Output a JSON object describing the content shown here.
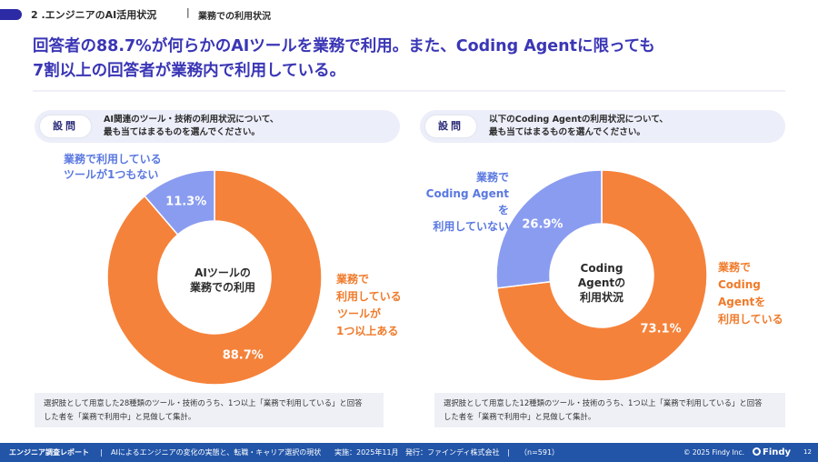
{
  "header": {
    "section": "2 .エンジニアのAI活用状況",
    "separator": "|",
    "subsection": "業務での利用状況"
  },
  "headline": {
    "line1": "回答者の88.7%が何らかのAIツールを業務で利用。また、Coding Agentに限っても",
    "line2": "7割以上の回答者が業務内で利用している。"
  },
  "left": {
    "question_label": "設問",
    "question_line1": "AI関連のツール・技術の利用状況について、",
    "question_line2": "最も当てはまるものを選んでください。",
    "blue_label": [
      "業務で利用している",
      "ツールが1つもない"
    ],
    "orange_label": [
      "業務で",
      "利用している",
      "ツールが",
      "1つ以上ある"
    ],
    "center": [
      "AIツールの",
      "業務での利用"
    ],
    "note_line1": "選択肢として用意した28種類のツール・技術のうち、1つ以上「業務で利用している」と回答",
    "note_line2": "した者を「業務で利用中」と見做して集計。"
  },
  "right": {
    "question_label": "設問",
    "question_line1": "以下のCoding Agentの利用状況について、",
    "question_line2": "最も当てはまるものを選んでください。",
    "blue_label": [
      "業務で",
      "Coding Agentを",
      "利用していない"
    ],
    "orange_label": [
      "業務で",
      "Coding",
      "Agentを",
      "利用している"
    ],
    "center": [
      "Coding",
      "Agentの",
      "利用状況"
    ],
    "note_line1": "選択肢として用意した12種類のツール・技術のうち、1つ以上「業務で利用している」と回答",
    "note_line2": "した者を「業務で利用中」と見做して集計。"
  },
  "colors": {
    "orange": "#f5823a",
    "blue": "#8a9cf0",
    "title": "#3a36b5",
    "footer": "#2255a8"
  },
  "chart_data": [
    {
      "type": "pie",
      "categories": [
        "業務で利用しているツールが1つ以上ある",
        "業務で利用しているツールが1つもない"
      ],
      "values": [
        88.7,
        11.3
      ],
      "labels": [
        "88.7%",
        "11.3%"
      ],
      "colors": [
        "#f5823a",
        "#8a9cf0"
      ]
    },
    {
      "type": "pie",
      "categories": [
        "業務でCoding Agentを利用している",
        "業務でCoding Agentを利用していない"
      ],
      "values": [
        73.1,
        26.9
      ],
      "labels": [
        "73.1%",
        "26.9%"
      ],
      "colors": [
        "#f5823a",
        "#8a9cf0"
      ]
    }
  ],
  "footer": {
    "report": "エンジニア調査レポート",
    "sep1": "|",
    "desc": "AIによるエンジニアの変化の実態と、転職・キャリア選択の現状",
    "date": "実施：2025年11月",
    "publisher": "発行：ファインディ株式会社",
    "sep2": "|",
    "n": "（n=591）",
    "copyright": "© 2025 Findy Inc.",
    "brand": "Findy",
    "page": "12"
  }
}
